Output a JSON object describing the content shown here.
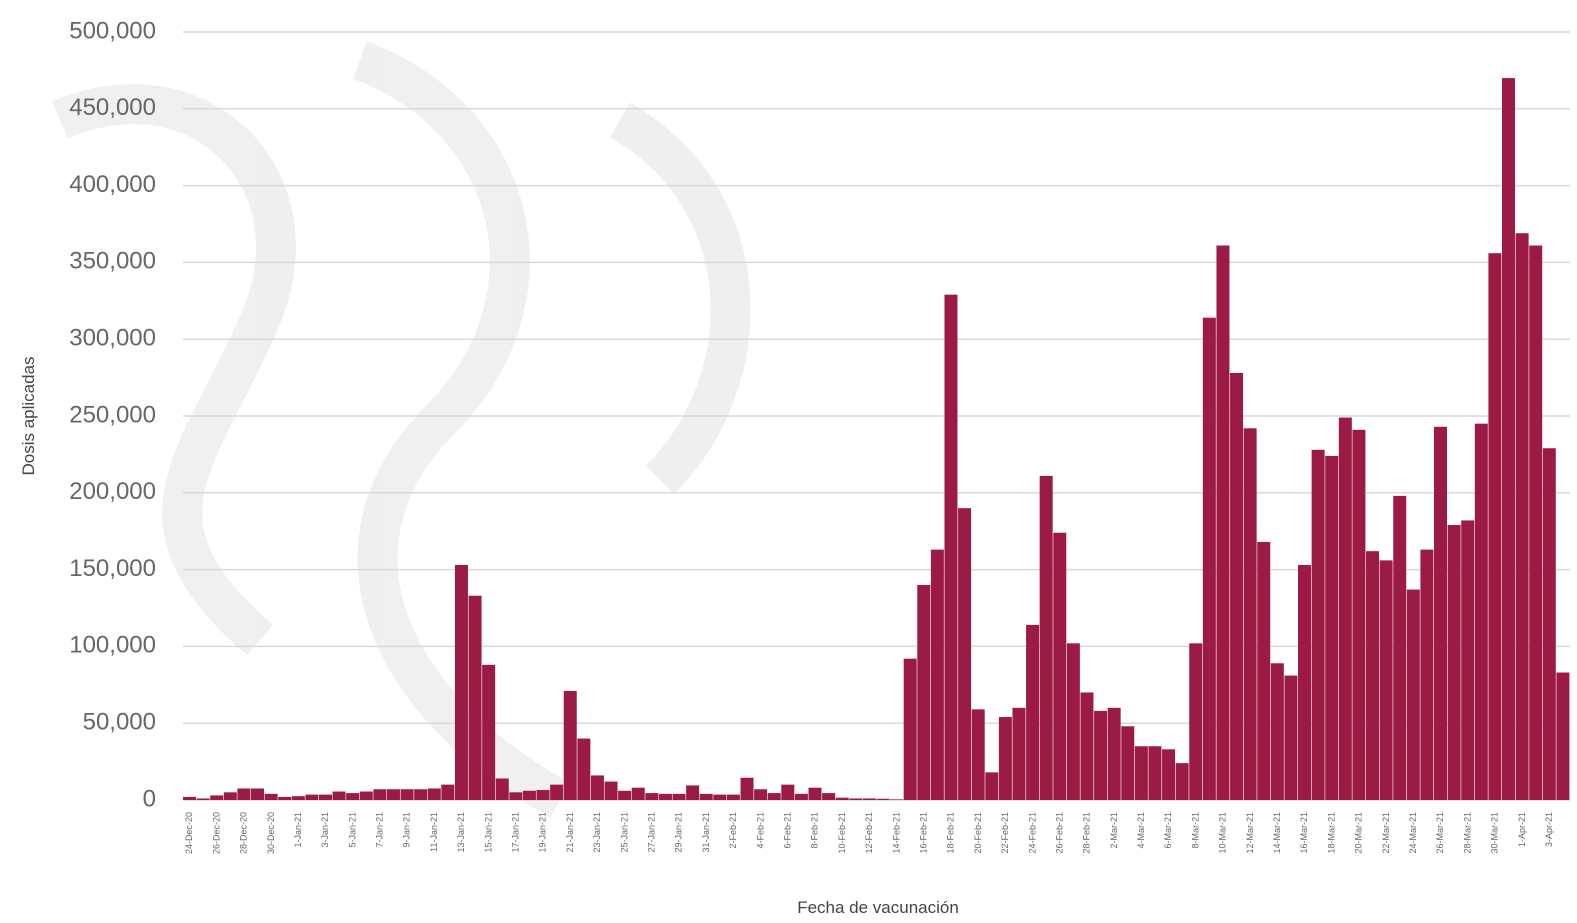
{
  "chart_data": {
    "type": "bar",
    "y_label": "Dosis aplicadas",
    "x_label": "Fecha de vacunación",
    "color": "#9b1b45",
    "grid": true,
    "ylim": [
      0,
      500000
    ],
    "yticks": [
      0,
      {
        "value": 50000,
        "label": "50,000"
      },
      {
        "value": 100000,
        "label": "100,000"
      },
      {
        "value": 150000,
        "label": "150,000"
      },
      {
        "value": 200000,
        "label": "200,000"
      },
      {
        "value": 250000,
        "label": "250,000"
      },
      {
        "value": 300000,
        "label": "300,000"
      },
      {
        "value": 350000,
        "label": "350,000"
      },
      {
        "value": 400000,
        "label": "400,000"
      },
      {
        "value": 450000,
        "label": "450,000"
      },
      {
        "value": 500000,
        "label": "500,000"
      }
    ],
    "categories": [
      "24-Dec-20",
      null,
      "26-Dec-20",
      null,
      "28-Dec-20",
      null,
      "30-Dec-20",
      null,
      "1-Jan-21",
      null,
      "3-Jan-21",
      null,
      "5-Jan-21",
      null,
      "7-Jan-21",
      null,
      "9-Jan-21",
      null,
      "11-Jan-21",
      null,
      "13-Jan-21",
      null,
      "15-Jan-21",
      null,
      "17-Jan-21",
      null,
      "19-Jan-21",
      null,
      "21-Jan-21",
      null,
      "23-Jan-21",
      null,
      "25-Jan-21",
      null,
      "27-Jan-21",
      null,
      "29-Jan-21",
      null,
      "31-Jan-21",
      null,
      "2-Feb-21",
      null,
      "4-Feb-21",
      null,
      "6-Feb-21",
      null,
      "8-Feb-21",
      null,
      "10-Feb-21",
      null,
      "12-Feb-21",
      null,
      "14-Feb-21",
      null,
      "16-Feb-21",
      null,
      "18-Feb-21",
      null,
      "20-Feb-21",
      null,
      "22-Feb-21",
      null,
      "24-Feb-21",
      null,
      "26-Feb-21",
      null,
      "28-Feb-21",
      null,
      "2-Mar-21",
      null,
      "4-Mar-21",
      null,
      "6-Mar-21",
      null,
      "8-Mar-21",
      null,
      "10-Mar-21",
      null,
      "12-Mar-21",
      null,
      "14-Mar-21",
      null,
      "16-Mar-21",
      null,
      "18-Mar-21",
      null,
      "20-Mar-21",
      null,
      "22-Mar-21",
      null,
      "24-Mar-21",
      null,
      "26-Mar-21",
      null,
      "28-Mar-21",
      null,
      "30-Mar-21",
      null,
      "1-Apr-21",
      null,
      "3-Apr-21",
      null
    ],
    "values": [
      2000,
      1000,
      3000,
      5000,
      7500,
      7500,
      4000,
      2000,
      2500,
      3500,
      3500,
      5500,
      4500,
      5500,
      7000,
      7000,
      7000,
      7000,
      7500,
      10000,
      153000,
      133000,
      88000,
      14000,
      5000,
      6000,
      6500,
      10000,
      71000,
      40000,
      16000,
      12000,
      6000,
      8000,
      4500,
      4000,
      4000,
      9500,
      4000,
      3500,
      3500,
      14500,
      7000,
      4500,
      10000,
      4000,
      8000,
      4500,
      1500,
      1000,
      1000,
      800,
      400,
      92000,
      140000,
      163000,
      329000,
      190000,
      59000,
      18000,
      54000,
      60000,
      114000,
      211000,
      174000,
      102000,
      70000,
      58000,
      60000,
      48000,
      35000,
      35000,
      33000,
      24000,
      102000,
      314000,
      361000,
      278000,
      242000,
      168000,
      89000,
      81000,
      153000,
      228000,
      224000,
      249000,
      241000,
      162000,
      156000,
      198000,
      137000,
      163000,
      243000,
      179000,
      182000,
      245000,
      356000,
      470000,
      369000,
      361000,
      229000,
      83000
    ]
  }
}
